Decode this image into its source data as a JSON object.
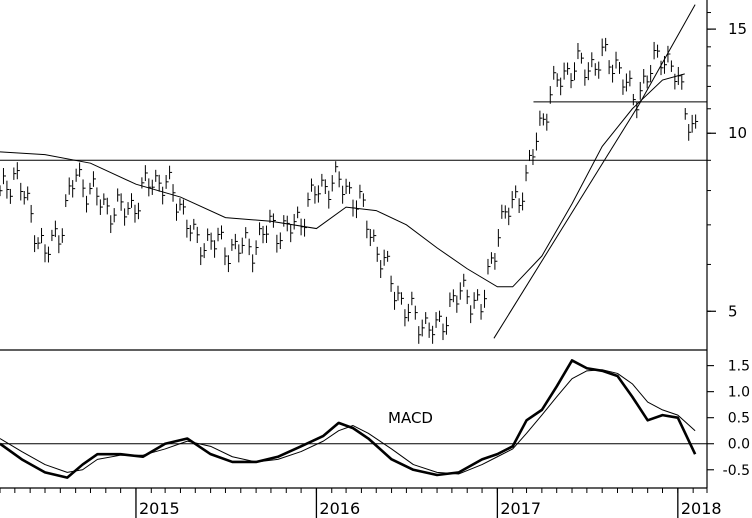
{
  "chart_data": [
    {
      "type": "line",
      "panel": "price",
      "subtype": "weekly high-low bars with trendlines and moving average",
      "title": "",
      "xlabel": "",
      "ylabel": "",
      "y_scale": "log",
      "ylim": [
        4.3,
        16.8
      ],
      "y_ticks": [
        5,
        10,
        15
      ],
      "y_tick_labels": [
        "5",
        "10",
        "15"
      ],
      "grid": false,
      "x_range": [
        "2014-04",
        "2018-03"
      ],
      "x_ticks": [
        "2015-01",
        "2016-01",
        "2017-01",
        "2018-01"
      ],
      "x_tick_labels": [
        "2015",
        "2016",
        "2017",
        "2018"
      ],
      "price_bars": {
        "dates": [
          "2014-04-01",
          "2014-05-01",
          "2014-06-01",
          "2014-07-01",
          "2014-08-01",
          "2014-09-01",
          "2014-10-01",
          "2014-11-01",
          "2014-12-01",
          "2015-01-01",
          "2015-02-01",
          "2015-03-01",
          "2015-04-01",
          "2015-05-01",
          "2015-06-01",
          "2015-07-01",
          "2015-08-01",
          "2015-09-01",
          "2015-10-01",
          "2015-11-01",
          "2015-12-01",
          "2016-01-01",
          "2016-02-01",
          "2016-03-01",
          "2016-04-01",
          "2016-05-01",
          "2016-06-01",
          "2016-07-01",
          "2016-08-01",
          "2016-09-01",
          "2016-10-01",
          "2016-11-01",
          "2016-12-01",
          "2017-01-01",
          "2017-02-01",
          "2017-03-01",
          "2017-04-01",
          "2017-05-01",
          "2017-06-01",
          "2017-07-01",
          "2017-08-01",
          "2017-09-01",
          "2017-10-01",
          "2017-11-01",
          "2017-12-01",
          "2018-01-01",
          "2018-02-01"
        ],
        "close": [
          7.8,
          8.6,
          7.3,
          6.2,
          6.9,
          8.5,
          8.0,
          7.5,
          7.4,
          7.6,
          8.4,
          8.2,
          7.6,
          6.5,
          6.6,
          6.4,
          6.4,
          6.5,
          7.0,
          6.8,
          7.2,
          8.0,
          8.3,
          8.1,
          7.5,
          6.4,
          5.6,
          5.0,
          4.8,
          4.6,
          5.2,
          5.4,
          5.0,
          6.8,
          7.6,
          8.3,
          10.6,
          12.2,
          13.0,
          12.9,
          13.4,
          13.1,
          11.3,
          12.5,
          13.8,
          12.2,
          10.1
        ],
        "range_pct": 0.07
      },
      "moving_average": {
        "dates": [
          "2014-04-01",
          "2014-07-01",
          "2014-10-01",
          "2015-01-01",
          "2015-04-01",
          "2015-07-01",
          "2015-10-01",
          "2016-01-01",
          "2016-03-01",
          "2016-05-01",
          "2016-07-01",
          "2016-09-01",
          "2016-11-01",
          "2017-01-01",
          "2017-02-01",
          "2017-04-01",
          "2017-06-01",
          "2017-08-01",
          "2017-10-01",
          "2017-12-01",
          "2018-01-15"
        ],
        "values": [
          9.3,
          9.2,
          8.9,
          8.2,
          7.8,
          7.2,
          7.1,
          6.9,
          7.5,
          7.4,
          7.0,
          6.4,
          5.9,
          5.5,
          5.5,
          6.2,
          7.6,
          9.5,
          11.0,
          12.3,
          12.6
        ]
      },
      "trendlines": [
        {
          "name": "",
          "kind": "horizontal",
          "y": 9.0,
          "from": "2014-04",
          "to": "2018-03"
        },
        {
          "name": "",
          "kind": "horizontal",
          "y": 11.3,
          "from": "2017-03-15",
          "to": "2018-03"
        },
        {
          "name": "",
          "kind": "line",
          "from": [
            "2016-12-25",
            4.5
          ],
          "to": [
            "2017-10-15",
            11.2
          ]
        },
        {
          "name": "",
          "kind": "line",
          "from": [
            "2017-10-15",
            11.2
          ],
          "to": [
            "2018-02-05",
            16.5
          ]
        }
      ]
    },
    {
      "type": "line",
      "panel": "indicator",
      "title": "",
      "annotation": "MACD",
      "xlabel": "",
      "ylabel": "",
      "ylim": [
        -0.85,
        1.8
      ],
      "y_ticks": [
        -0.5,
        0.0,
        0.5,
        1.0,
        1.5
      ],
      "y_tick_labels": [
        "-0.5",
        "0.0",
        "0.5",
        "1.0",
        "1.5"
      ],
      "grid": false,
      "zero_line": true,
      "x_range": [
        "2014-04",
        "2018-03"
      ],
      "series": [
        {
          "name": "",
          "style": "thick",
          "dates": [
            "2014-04-01",
            "2014-05-15",
            "2014-07-01",
            "2014-08-15",
            "2014-09-15",
            "2014-10-15",
            "2014-12-01",
            "2015-01-15",
            "2015-03-01",
            "2015-04-15",
            "2015-06-01",
            "2015-07-15",
            "2015-09-01",
            "2015-10-15",
            "2015-12-01",
            "2016-01-15",
            "2016-02-15",
            "2016-03-15",
            "2016-04-15",
            "2016-06-01",
            "2016-07-15",
            "2016-09-01",
            "2016-10-15",
            "2016-12-01",
            "2017-01-01",
            "2017-02-01",
            "2017-03-01",
            "2017-04-01",
            "2017-05-01",
            "2017-06-01",
            "2017-07-01",
            "2017-08-01",
            "2017-09-01",
            "2017-10-01",
            "2017-11-01",
            "2017-12-01",
            "2018-01-01",
            "2018-02-05"
          ],
          "values": [
            0.0,
            -0.3,
            -0.55,
            -0.65,
            -0.4,
            -0.2,
            -0.2,
            -0.25,
            0.0,
            0.1,
            -0.2,
            -0.35,
            -0.35,
            -0.25,
            -0.05,
            0.15,
            0.4,
            0.3,
            0.1,
            -0.3,
            -0.5,
            -0.6,
            -0.55,
            -0.3,
            -0.2,
            -0.05,
            0.45,
            0.65,
            1.1,
            1.6,
            1.45,
            1.4,
            1.3,
            0.9,
            0.45,
            0.55,
            0.5,
            -0.2
          ]
        },
        {
          "name": "",
          "style": "thin",
          "dates": [
            "2014-04-01",
            "2014-05-15",
            "2014-07-01",
            "2014-08-15",
            "2014-09-15",
            "2014-10-15",
            "2014-12-01",
            "2015-01-15",
            "2015-03-01",
            "2015-04-15",
            "2015-06-01",
            "2015-07-15",
            "2015-09-01",
            "2015-10-15",
            "2015-12-01",
            "2016-01-15",
            "2016-02-15",
            "2016-03-15",
            "2016-04-15",
            "2016-06-01",
            "2016-07-15",
            "2016-09-01",
            "2016-10-15",
            "2016-12-01",
            "2017-01-01",
            "2017-02-01",
            "2017-03-01",
            "2017-04-01",
            "2017-05-01",
            "2017-06-01",
            "2017-07-01",
            "2017-08-01",
            "2017-09-01",
            "2017-10-01",
            "2017-11-01",
            "2017-12-01",
            "2018-01-01",
            "2018-02-05"
          ],
          "values": [
            0.1,
            -0.15,
            -0.4,
            -0.55,
            -0.5,
            -0.3,
            -0.22,
            -0.22,
            -0.1,
            0.05,
            -0.05,
            -0.25,
            -0.35,
            -0.3,
            -0.15,
            0.05,
            0.25,
            0.35,
            0.2,
            -0.1,
            -0.4,
            -0.55,
            -0.58,
            -0.4,
            -0.25,
            -0.1,
            0.2,
            0.55,
            0.9,
            1.25,
            1.4,
            1.42,
            1.35,
            1.15,
            0.8,
            0.65,
            0.55,
            0.25
          ]
        }
      ]
    }
  ]
}
